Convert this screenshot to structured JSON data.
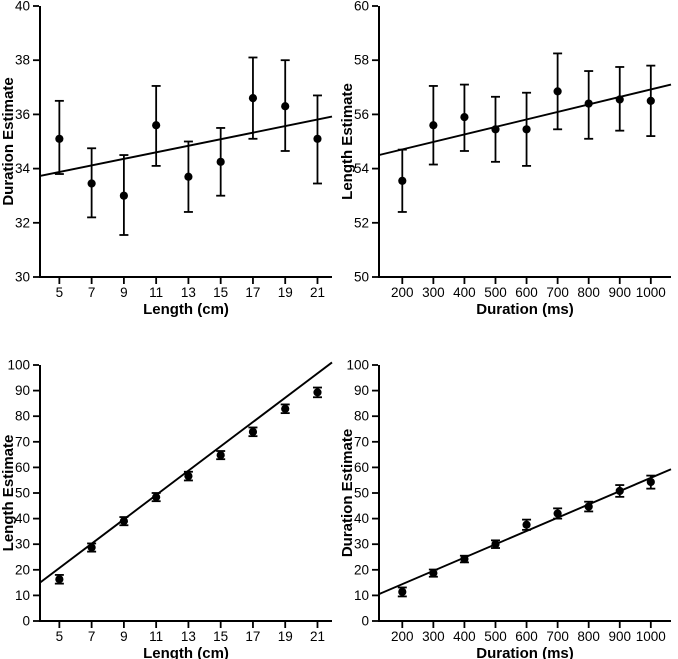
{
  "figure": {
    "background": "#ffffff",
    "ink": "#000000",
    "description": "Four-panel scatter figure with error bars and linear fit lines"
  },
  "chart_data": [
    {
      "id": "top-left",
      "type": "scatter",
      "title": "",
      "xlabel": "Length (cm)",
      "ylabel": "Duration Estimate",
      "xlim": [
        3.8,
        21.9
      ],
      "ylim": [
        30,
        40
      ],
      "xticks": [
        5,
        7,
        9,
        11,
        13,
        15,
        17,
        19,
        21
      ],
      "yticks": [
        30,
        32,
        34,
        36,
        38,
        40
      ],
      "x": [
        5,
        7,
        9,
        11,
        13,
        15,
        17,
        19,
        21
      ],
      "y": [
        35.1,
        33.45,
        33.0,
        35.6,
        33.7,
        34.25,
        36.6,
        36.3,
        35.1
      ],
      "err_lo": [
        33.8,
        32.2,
        31.55,
        34.1,
        32.4,
        33.0,
        35.1,
        34.65,
        33.45
      ],
      "err_hi": [
        36.5,
        34.75,
        34.5,
        37.05,
        35.0,
        35.5,
        38.1,
        38.0,
        36.7
      ],
      "fit_line": {
        "start": 33.73,
        "end": 35.92
      },
      "grid": false,
      "legend": "none"
    },
    {
      "id": "top-right",
      "type": "scatter",
      "title": "",
      "xlabel": "Duration (ms)",
      "ylabel": "Length Estimate",
      "xlim": [
        125,
        1065
      ],
      "ylim": [
        50,
        60
      ],
      "xticks": [
        200,
        300,
        400,
        500,
        600,
        700,
        800,
        900,
        1000
      ],
      "yticks": [
        50,
        52,
        54,
        56,
        58,
        60
      ],
      "x": [
        200,
        300,
        400,
        500,
        600,
        700,
        800,
        900,
        1000
      ],
      "y": [
        53.55,
        55.6,
        55.9,
        55.45,
        55.45,
        56.85,
        56.4,
        56.55,
        56.5
      ],
      "err_lo": [
        52.4,
        54.15,
        54.65,
        54.25,
        54.1,
        55.45,
        55.1,
        55.4,
        55.2
      ],
      "err_hi": [
        54.7,
        57.05,
        57.1,
        56.65,
        56.8,
        58.25,
        57.6,
        57.75,
        57.8
      ],
      "fit_line": {
        "start": 54.5,
        "end": 57.1
      },
      "grid": false,
      "legend": "none"
    },
    {
      "id": "bottom-left",
      "type": "scatter",
      "title": "",
      "xlabel": "Length (cm)",
      "ylabel": "Length Estimate",
      "xlim": [
        3.8,
        21.9
      ],
      "ylim": [
        0,
        100
      ],
      "xticks": [
        5,
        7,
        9,
        11,
        13,
        15,
        17,
        19,
        21
      ],
      "yticks": [
        0,
        10,
        20,
        30,
        40,
        50,
        60,
        70,
        80,
        90,
        100
      ],
      "x": [
        5,
        7,
        9,
        11,
        13,
        15,
        17,
        19,
        21
      ],
      "y": [
        16.3,
        28.7,
        39.0,
        48.4,
        56.6,
        64.8,
        73.9,
        82.9,
        89.3
      ],
      "err_lo": [
        14.6,
        27.1,
        37.4,
        46.8,
        54.9,
        63.2,
        72.2,
        81.2,
        87.4
      ],
      "err_hi": [
        18.0,
        30.3,
        40.6,
        50.0,
        58.3,
        66.4,
        75.6,
        84.6,
        91.2
      ],
      "fit_line": {
        "start": 15.0,
        "end": 101.0
      },
      "grid": false,
      "legend": "none"
    },
    {
      "id": "bottom-right",
      "type": "scatter",
      "title": "",
      "xlabel": "Duration (ms)",
      "ylabel": "Duration Estimate",
      "xlim": [
        125,
        1065
      ],
      "ylim": [
        0,
        100
      ],
      "xticks": [
        200,
        300,
        400,
        500,
        600,
        700,
        800,
        900,
        1000
      ],
      "yticks": [
        0,
        10,
        20,
        30,
        40,
        50,
        60,
        70,
        80,
        90,
        100
      ],
      "x": [
        200,
        300,
        400,
        500,
        600,
        700,
        800,
        900,
        1000
      ],
      "y": [
        11.4,
        18.7,
        24.2,
        30.0,
        37.6,
        42.0,
        44.7,
        50.8,
        54.3
      ],
      "err_lo": [
        9.6,
        17.3,
        22.9,
        28.5,
        35.6,
        40.0,
        42.8,
        48.5,
        51.7
      ],
      "err_hi": [
        13.1,
        20.1,
        25.5,
        31.5,
        39.6,
        44.0,
        46.6,
        53.1,
        56.8
      ],
      "fit_line": {
        "start": 10.5,
        "end": 59.3
      },
      "grid": false,
      "legend": "none"
    }
  ]
}
